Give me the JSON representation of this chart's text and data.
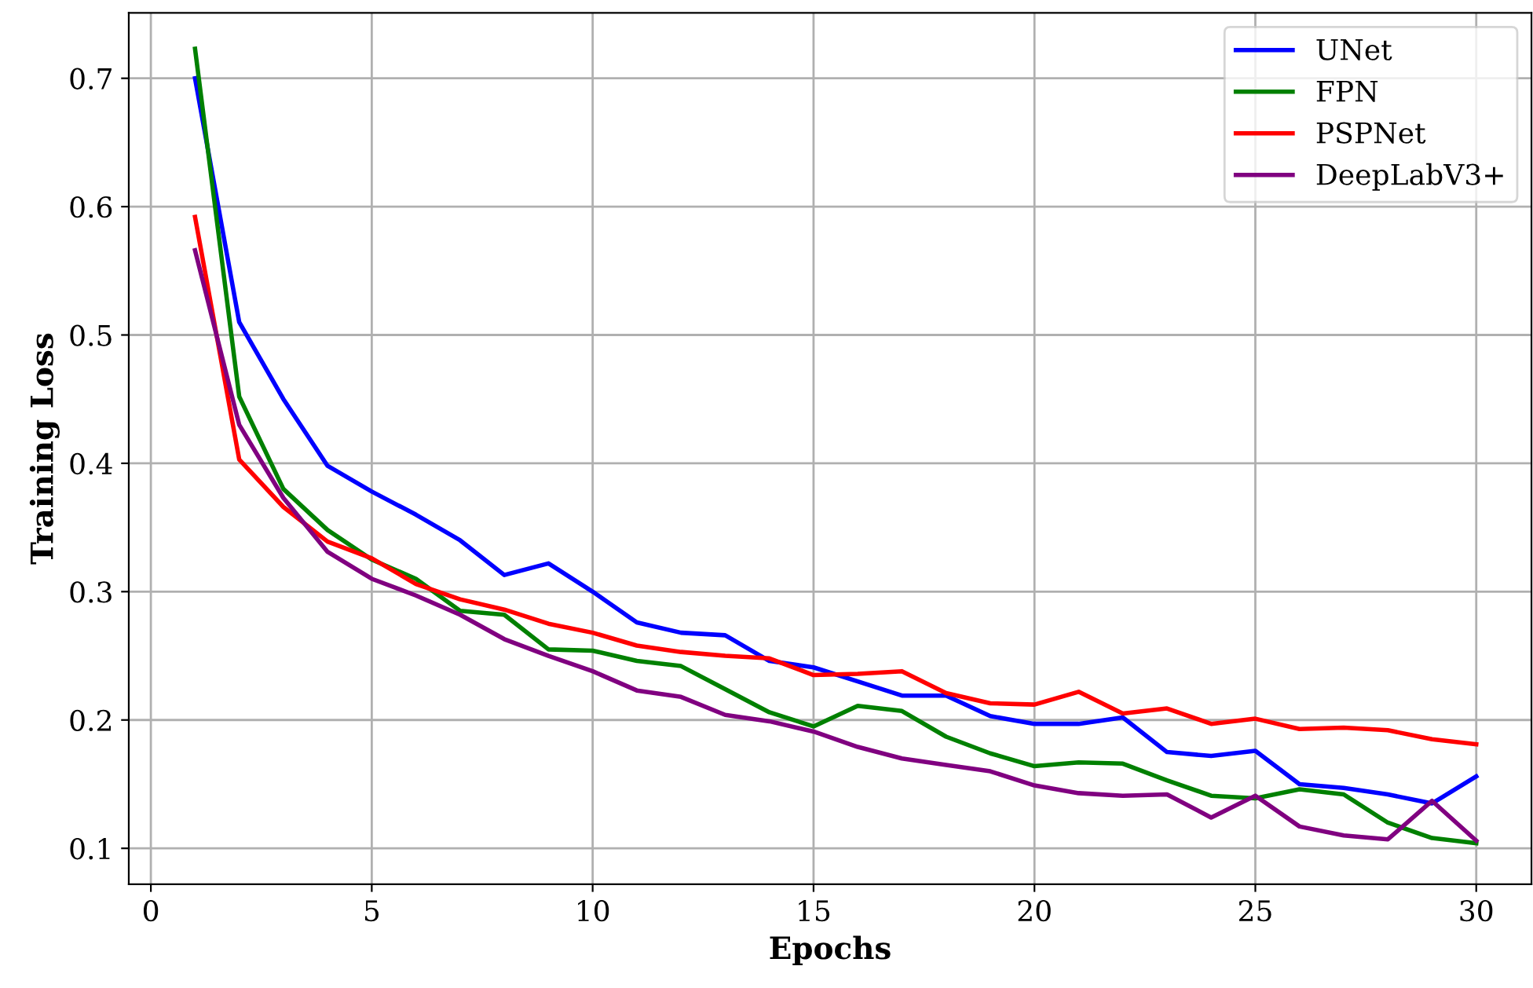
{
  "chart_data": {
    "type": "line",
    "xlabel": "Epochs",
    "ylabel": "Training Loss",
    "x": [
      1,
      2,
      3,
      4,
      5,
      6,
      7,
      8,
      9,
      10,
      11,
      12,
      13,
      14,
      15,
      16,
      17,
      18,
      19,
      20,
      21,
      22,
      23,
      24,
      25,
      26,
      27,
      28,
      29,
      30
    ],
    "series": [
      {
        "name": "UNet",
        "color": "#0000ff",
        "values": [
          0.7,
          0.51,
          0.45,
          0.398,
          0.378,
          0.36,
          0.34,
          0.313,
          0.322,
          0.3,
          0.276,
          0.268,
          0.266,
          0.246,
          0.241,
          0.23,
          0.219,
          0.219,
          0.203,
          0.197,
          0.197,
          0.202,
          0.175,
          0.172,
          0.176,
          0.15,
          0.147,
          0.142,
          0.135,
          0.156
        ]
      },
      {
        "name": "FPN",
        "color": "#008000",
        "values": [
          0.723,
          0.452,
          0.38,
          0.348,
          0.325,
          0.31,
          0.285,
          0.282,
          0.255,
          0.254,
          0.246,
          0.242,
          0.224,
          0.206,
          0.195,
          0.211,
          0.207,
          0.187,
          0.174,
          0.164,
          0.167,
          0.166,
          0.153,
          0.141,
          0.139,
          0.146,
          0.142,
          0.12,
          0.108,
          0.104
        ]
      },
      {
        "name": "PSPNet",
        "color": "#ff0000",
        "values": [
          0.592,
          0.403,
          0.366,
          0.339,
          0.326,
          0.306,
          0.294,
          0.286,
          0.275,
          0.268,
          0.258,
          0.253,
          0.25,
          0.248,
          0.235,
          0.236,
          0.238,
          0.221,
          0.213,
          0.212,
          0.222,
          0.205,
          0.209,
          0.197,
          0.201,
          0.193,
          0.194,
          0.192,
          0.185,
          0.181
        ]
      },
      {
        "name": "DeepLabV3+",
        "color": "#800080",
        "values": [
          0.566,
          0.43,
          0.373,
          0.331,
          0.31,
          0.297,
          0.282,
          0.263,
          0.25,
          0.238,
          0.223,
          0.218,
          0.204,
          0.199,
          0.191,
          0.179,
          0.17,
          0.165,
          0.16,
          0.149,
          0.143,
          0.141,
          0.142,
          0.124,
          0.141,
          0.117,
          0.11,
          0.107,
          0.137,
          0.106
        ]
      }
    ],
    "xlim": [
      -0.5,
      31.25
    ],
    "ylim": [
      0.072,
      0.751
    ],
    "xticks": [
      0,
      5,
      10,
      15,
      20,
      25,
      30
    ],
    "yticks": [
      0.1,
      0.2,
      0.3,
      0.4,
      0.5,
      0.6,
      0.7
    ],
    "grid": true,
    "legend": "top right",
    "line_style": "solid",
    "marker": "none"
  }
}
